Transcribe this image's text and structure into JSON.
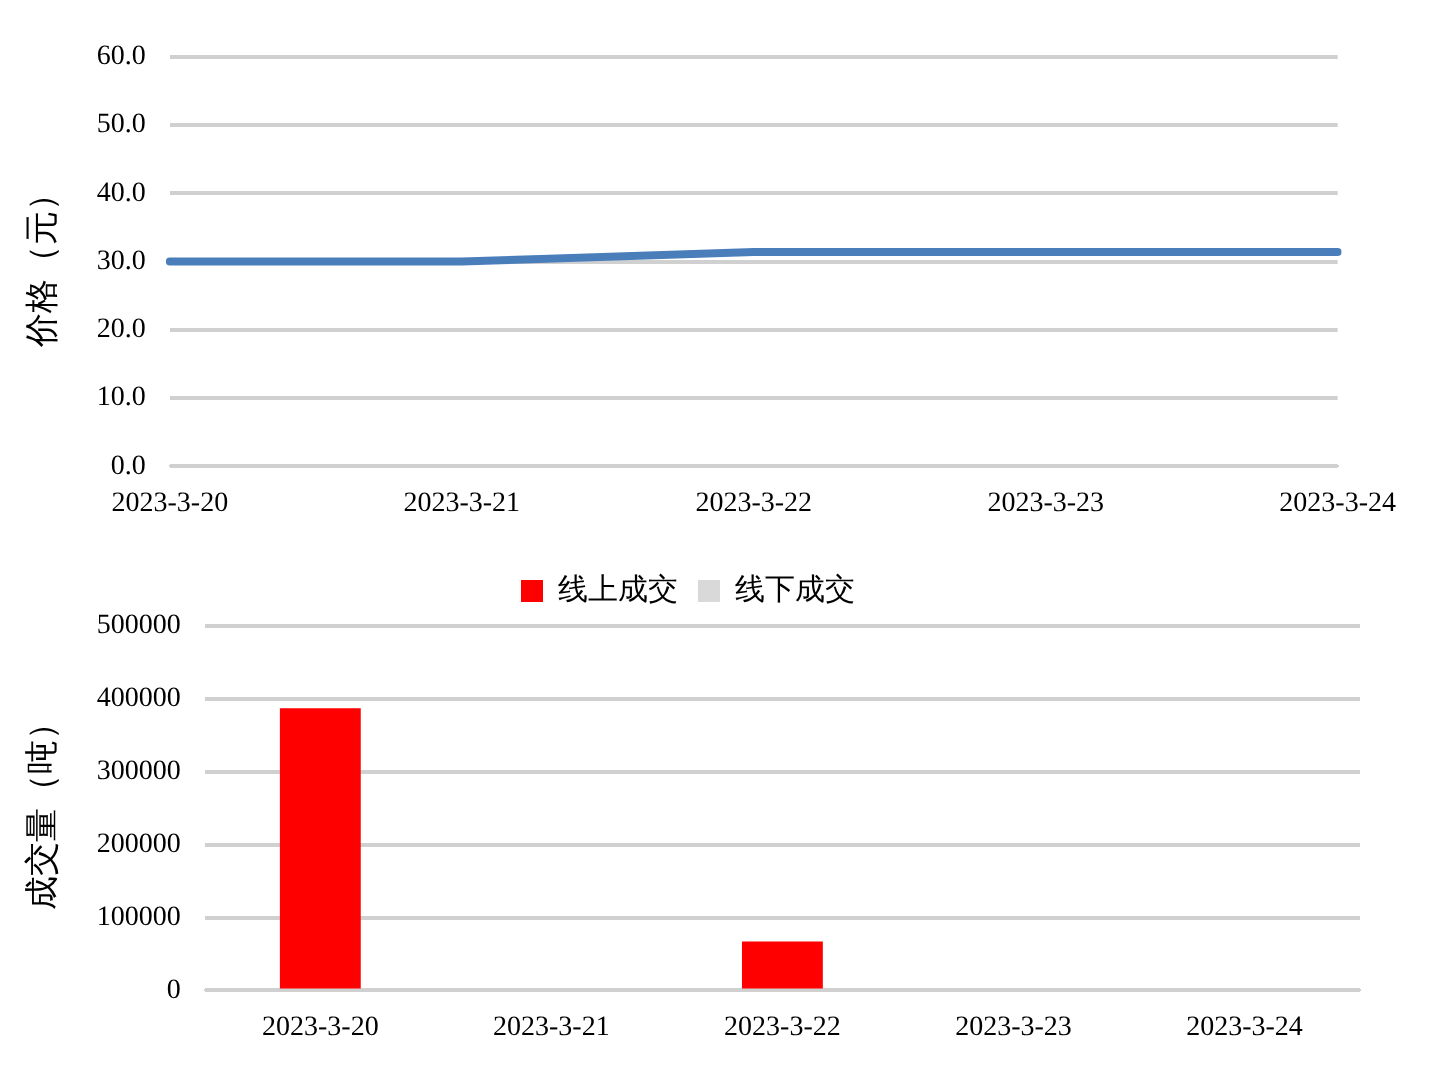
{
  "chart_data": [
    {
      "type": "line",
      "ylabel": "价格（元）",
      "categories": [
        "2023-3-20",
        "2023-3-21",
        "2023-3-22",
        "2023-3-23",
        "2023-3-24"
      ],
      "series": [
        {
          "color": "#4a7ebb",
          "values": [
            30.0,
            30.0,
            31.4,
            31.4,
            31.4
          ]
        }
      ],
      "ylim": [
        0,
        60
      ],
      "yticks": [
        {
          "value": 0,
          "label": "0.0"
        },
        {
          "value": 10,
          "label": "10.0"
        },
        {
          "value": 20,
          "label": "20.0"
        },
        {
          "value": 30,
          "label": "30.0"
        },
        {
          "value": 40,
          "label": "40.0"
        },
        {
          "value": 50,
          "label": "50.0"
        },
        {
          "value": 60,
          "label": "60.0"
        }
      ],
      "grid": "y",
      "legend": false,
      "marker": "none",
      "line_style": "solid"
    },
    {
      "type": "bar",
      "ylabel": "成交量（吨）",
      "categories": [
        "2023-3-20",
        "2023-3-21",
        "2023-3-22",
        "2023-3-23",
        "2023-3-24"
      ],
      "stacked": true,
      "series": [
        {
          "name": "线上成交",
          "color": "#ff0000",
          "values": [
            387000,
            0,
            67000,
            0,
            0
          ]
        },
        {
          "name": "线下成交",
          "color": "#d9d9d9",
          "values": [
            0,
            0,
            0,
            0,
            0
          ]
        }
      ],
      "ylim": [
        0,
        500000
      ],
      "yticks": [
        0,
        100000,
        200000,
        300000,
        400000,
        500000
      ],
      "grid": "y",
      "legend": "top"
    }
  ]
}
